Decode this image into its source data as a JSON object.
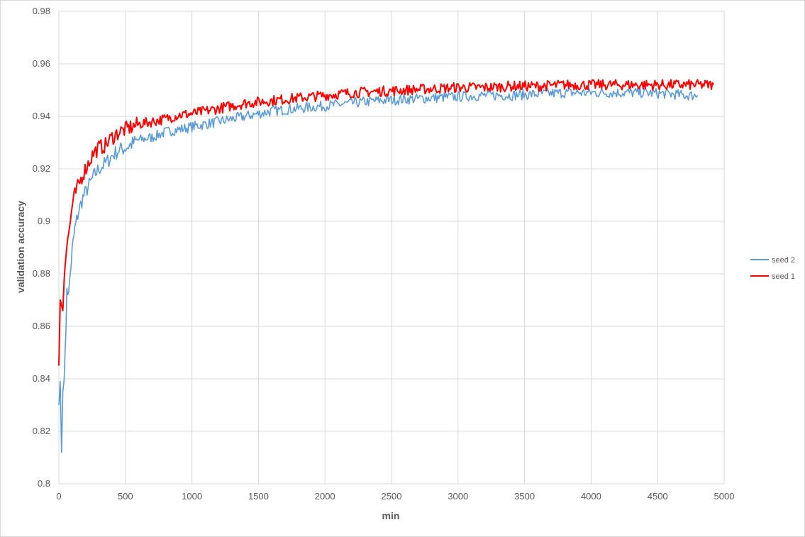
{
  "chart_data": {
    "type": "line",
    "xlabel": "min",
    "ylabel": "validation accuracy",
    "xlim": [
      0,
      5000
    ],
    "ylim": [
      0.8,
      0.98
    ],
    "x_ticks": [
      "0",
      "500",
      "1000",
      "1500",
      "2000",
      "2500",
      "3000",
      "3500",
      "4000",
      "4500",
      "5000"
    ],
    "y_ticks": [
      "0.8",
      "0.82",
      "0.84",
      "0.86",
      "0.88",
      "0.9",
      "0.92",
      "0.94",
      "0.96",
      "0.98"
    ],
    "grid": true,
    "legend_position": "right",
    "series": [
      {
        "name": "seed 2",
        "color": "#5b9bd5",
        "points": [
          [
            0,
            0.83
          ],
          [
            10,
            0.839
          ],
          [
            20,
            0.812
          ],
          [
            30,
            0.835
          ],
          [
            40,
            0.84
          ],
          [
            60,
            0.872
          ],
          [
            80,
            0.876
          ],
          [
            100,
            0.889
          ],
          [
            120,
            0.897
          ],
          [
            150,
            0.904
          ],
          [
            180,
            0.909
          ],
          [
            220,
            0.913
          ],
          [
            260,
            0.917
          ],
          [
            300,
            0.92
          ],
          [
            350,
            0.922
          ],
          [
            400,
            0.925
          ],
          [
            450,
            0.927
          ],
          [
            500,
            0.928
          ],
          [
            600,
            0.931
          ],
          [
            700,
            0.932
          ],
          [
            800,
            0.934
          ],
          [
            900,
            0.935
          ],
          [
            1000,
            0.936
          ],
          [
            1100,
            0.937
          ],
          [
            1200,
            0.938
          ],
          [
            1300,
            0.939
          ],
          [
            1400,
            0.94
          ],
          [
            1500,
            0.941
          ],
          [
            1600,
            0.942
          ],
          [
            1800,
            0.943
          ],
          [
            2000,
            0.944
          ],
          [
            2200,
            0.945
          ],
          [
            2400,
            0.946
          ],
          [
            2600,
            0.9465
          ],
          [
            2800,
            0.947
          ],
          [
            3000,
            0.9475
          ],
          [
            3200,
            0.948
          ],
          [
            3400,
            0.948
          ],
          [
            3600,
            0.9485
          ],
          [
            3800,
            0.949
          ],
          [
            4000,
            0.949
          ],
          [
            4200,
            0.949
          ],
          [
            4400,
            0.949
          ],
          [
            4600,
            0.9485
          ],
          [
            4700,
            0.948
          ],
          [
            4800,
            0.948
          ]
        ]
      },
      {
        "name": "seed 1",
        "color": "#ff0000",
        "points": [
          [
            0,
            0.845
          ],
          [
            10,
            0.87
          ],
          [
            20,
            0.868
          ],
          [
            30,
            0.866
          ],
          [
            40,
            0.878
          ],
          [
            60,
            0.893
          ],
          [
            80,
            0.897
          ],
          [
            100,
            0.906
          ],
          [
            120,
            0.91
          ],
          [
            150,
            0.914
          ],
          [
            180,
            0.918
          ],
          [
            220,
            0.922
          ],
          [
            260,
            0.926
          ],
          [
            300,
            0.928
          ],
          [
            350,
            0.929
          ],
          [
            400,
            0.932
          ],
          [
            450,
            0.934
          ],
          [
            500,
            0.935
          ],
          [
            600,
            0.937
          ],
          [
            700,
            0.938
          ],
          [
            800,
            0.939
          ],
          [
            900,
            0.9405
          ],
          [
            1000,
            0.941
          ],
          [
            1100,
            0.942
          ],
          [
            1200,
            0.943
          ],
          [
            1300,
            0.944
          ],
          [
            1400,
            0.945
          ],
          [
            1500,
            0.9455
          ],
          [
            1600,
            0.946
          ],
          [
            1800,
            0.947
          ],
          [
            2000,
            0.948
          ],
          [
            2200,
            0.949
          ],
          [
            2400,
            0.9495
          ],
          [
            2600,
            0.95
          ],
          [
            2800,
            0.9505
          ],
          [
            3000,
            0.951
          ],
          [
            3200,
            0.951
          ],
          [
            3400,
            0.9515
          ],
          [
            3600,
            0.9515
          ],
          [
            3800,
            0.952
          ],
          [
            4000,
            0.952
          ],
          [
            4200,
            0.952
          ],
          [
            4400,
            0.952
          ],
          [
            4600,
            0.952
          ],
          [
            4800,
            0.952
          ],
          [
            4920,
            0.952
          ]
        ]
      }
    ]
  }
}
